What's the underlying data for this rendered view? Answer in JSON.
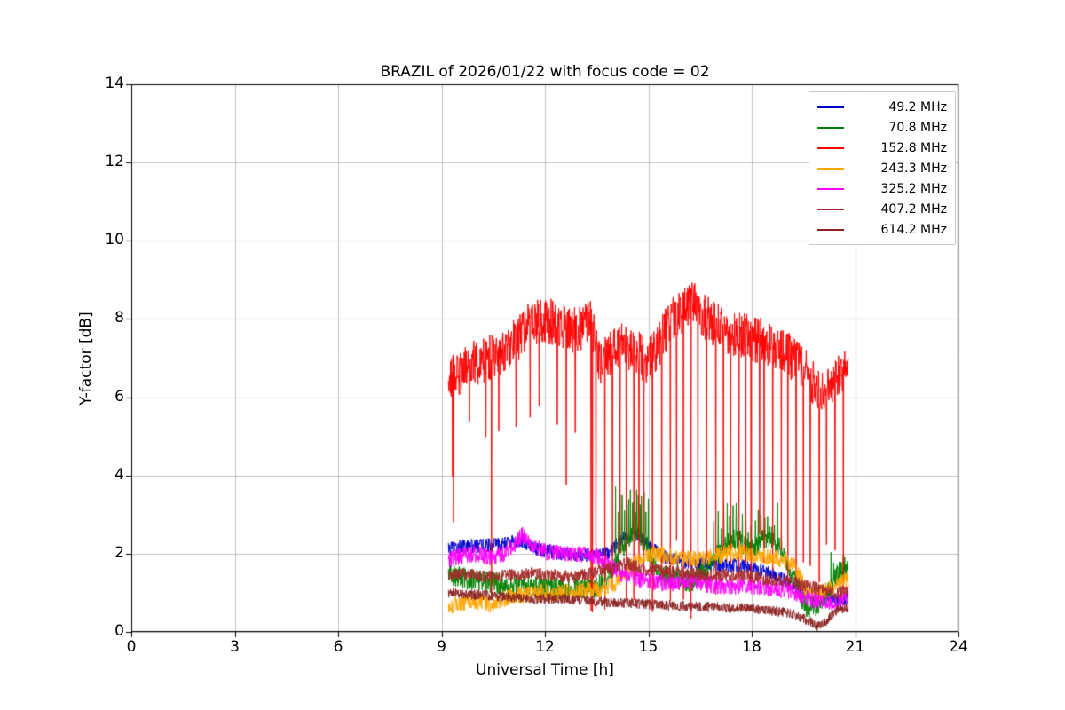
{
  "chart_data": {
    "type": "line",
    "title": "BRAZIL of 2026/01/22 with focus code = 02",
    "xlabel": "Universal Time [h]",
    "ylabel": "Y-factor [dB]",
    "xlim": [
      0,
      24
    ],
    "ylim": [
      0,
      14
    ],
    "xticks": [
      0,
      3,
      6,
      9,
      12,
      15,
      18,
      21,
      24
    ],
    "yticks": [
      0,
      2,
      4,
      6,
      8,
      10,
      12,
      14
    ],
    "grid": true,
    "grid_color": "#b0b0b0",
    "legend_position": "upper right",
    "data_x_range": [
      9.2,
      20.8
    ],
    "series": [
      {
        "name": "49.2 MHz",
        "color": "#0000cd",
        "noise": 0.18,
        "keypoints": [
          [
            9.2,
            2.1
          ],
          [
            9.6,
            2.2
          ],
          [
            10.2,
            2.2
          ],
          [
            10.8,
            2.25
          ],
          [
            11.3,
            2.35
          ],
          [
            11.8,
            2.1
          ],
          [
            12.5,
            2.0
          ],
          [
            13.2,
            1.95
          ],
          [
            13.8,
            2.0
          ],
          [
            14.3,
            2.4
          ],
          [
            14.7,
            2.5
          ],
          [
            15.0,
            2.2
          ],
          [
            15.5,
            1.9
          ],
          [
            16.0,
            1.8
          ],
          [
            16.5,
            1.75
          ],
          [
            17.0,
            1.7
          ],
          [
            17.5,
            1.7
          ],
          [
            18.0,
            1.65
          ],
          [
            18.5,
            1.5
          ],
          [
            19.0,
            1.3
          ],
          [
            19.4,
            1.1
          ],
          [
            19.7,
            0.9
          ],
          [
            20.0,
            0.85
          ],
          [
            20.4,
            0.8
          ],
          [
            20.8,
            0.9
          ]
        ]
      },
      {
        "name": "70.8 MHz",
        "color": "#008000",
        "noise": 0.28,
        "keypoints": [
          [
            9.2,
            1.45
          ],
          [
            9.8,
            1.35
          ],
          [
            10.5,
            1.25
          ],
          [
            11.2,
            1.2
          ],
          [
            12.0,
            1.15
          ],
          [
            12.8,
            1.1
          ],
          [
            13.5,
            1.15
          ],
          [
            14.0,
            1.6
          ],
          [
            14.4,
            2.4
          ],
          [
            14.7,
            2.6
          ],
          [
            15.0,
            2.1
          ],
          [
            15.3,
            1.5
          ],
          [
            15.8,
            1.35
          ],
          [
            16.3,
            1.3
          ],
          [
            16.8,
            1.7
          ],
          [
            17.2,
            2.2
          ],
          [
            17.6,
            2.4
          ],
          [
            18.0,
            2.1
          ],
          [
            18.4,
            2.4
          ],
          [
            18.7,
            2.3
          ],
          [
            19.0,
            1.8
          ],
          [
            19.3,
            1.2
          ],
          [
            19.6,
            0.6
          ],
          [
            19.9,
            0.7
          ],
          [
            20.2,
            1.0
          ],
          [
            20.5,
            1.5
          ],
          [
            20.8,
            1.7
          ]
        ],
        "up_spike_regions": [
          {
            "x0": 14.05,
            "x1": 15.05,
            "top": [
              3.0,
              3.8
            ],
            "interval": 0.06
          },
          {
            "x0": 16.9,
            "x1": 18.9,
            "top": [
              2.5,
              3.3
            ],
            "interval": 0.1
          },
          {
            "x0": 20.3,
            "x1": 20.78,
            "top": [
              1.7,
              2.1
            ],
            "interval": 0.08
          }
        ]
      },
      {
        "name": "152.8 MHz",
        "color": "#ff0000",
        "noise": 0.6,
        "keypoints": [
          [
            9.2,
            6.3
          ],
          [
            9.4,
            6.6
          ],
          [
            9.7,
            6.7
          ],
          [
            10.0,
            6.9
          ],
          [
            10.4,
            7.0
          ],
          [
            10.8,
            7.1
          ],
          [
            11.2,
            7.5
          ],
          [
            11.6,
            7.9
          ],
          [
            12.0,
            7.95
          ],
          [
            12.4,
            7.9
          ],
          [
            12.8,
            7.7
          ],
          [
            13.1,
            7.8
          ],
          [
            13.35,
            7.9
          ],
          [
            13.6,
            6.9
          ],
          [
            13.9,
            7.1
          ],
          [
            14.2,
            7.3
          ],
          [
            14.6,
            7.2
          ],
          [
            15.0,
            6.9
          ],
          [
            15.3,
            7.3
          ],
          [
            15.6,
            7.9
          ],
          [
            15.9,
            8.1
          ],
          [
            16.2,
            8.5
          ],
          [
            16.5,
            8.2
          ],
          [
            16.8,
            7.9
          ],
          [
            17.2,
            7.7
          ],
          [
            17.6,
            7.6
          ],
          [
            18.0,
            7.5
          ],
          [
            18.4,
            7.4
          ],
          [
            18.8,
            7.2
          ],
          [
            19.2,
            7.0
          ],
          [
            19.6,
            6.6
          ],
          [
            20.0,
            6.2
          ],
          [
            20.3,
            6.2
          ],
          [
            20.55,
            6.6
          ],
          [
            20.8,
            7.0
          ]
        ],
        "down_spikes": {
          "transition_x": 13.3,
          "early": {
            "interval": 0.4,
            "depth": [
              3.6,
              5.8
            ]
          },
          "late": {
            "interval": 0.2,
            "depth": [
              0.3,
              2.6
            ]
          },
          "extra": [
            [
              9.35,
              2.8
            ],
            [
              10.45,
              0.9
            ],
            [
              13.38,
              0.5
            ]
          ]
        }
      },
      {
        "name": "243.3 MHz",
        "color": "#ffa500",
        "noise": 0.22,
        "keypoints": [
          [
            9.2,
            0.65
          ],
          [
            9.6,
            0.75
          ],
          [
            10.0,
            0.8
          ],
          [
            10.4,
            0.7
          ],
          [
            10.8,
            0.85
          ],
          [
            11.2,
            0.95
          ],
          [
            11.8,
            1.0
          ],
          [
            12.4,
            1.0
          ],
          [
            13.0,
            1.05
          ],
          [
            13.6,
            1.1
          ],
          [
            14.0,
            1.2
          ],
          [
            14.4,
            1.6
          ],
          [
            14.8,
            1.9
          ],
          [
            15.2,
            2.0
          ],
          [
            15.8,
            1.9
          ],
          [
            16.4,
            1.85
          ],
          [
            17.0,
            1.95
          ],
          [
            17.5,
            2.05
          ],
          [
            18.0,
            2.0
          ],
          [
            18.5,
            1.9
          ],
          [
            19.0,
            1.85
          ],
          [
            19.3,
            1.6
          ],
          [
            19.6,
            1.0
          ],
          [
            19.9,
            0.95
          ],
          [
            20.2,
            1.1
          ],
          [
            20.5,
            1.25
          ],
          [
            20.8,
            1.3
          ]
        ]
      },
      {
        "name": "325.2 MHz",
        "color": "#ff00ff",
        "noise": 0.22,
        "keypoints": [
          [
            9.2,
            1.85
          ],
          [
            9.6,
            1.95
          ],
          [
            10.0,
            2.0
          ],
          [
            10.4,
            1.9
          ],
          [
            10.8,
            2.0
          ],
          [
            11.1,
            2.2
          ],
          [
            11.35,
            2.5
          ],
          [
            11.6,
            2.2
          ],
          [
            12.0,
            2.05
          ],
          [
            12.5,
            2.0
          ],
          [
            13.0,
            2.0
          ],
          [
            13.5,
            1.95
          ],
          [
            13.9,
            1.7
          ],
          [
            14.3,
            1.45
          ],
          [
            14.8,
            1.35
          ],
          [
            15.3,
            1.25
          ],
          [
            15.8,
            1.25
          ],
          [
            16.3,
            1.3
          ],
          [
            16.8,
            1.2
          ],
          [
            17.3,
            1.15
          ],
          [
            17.8,
            1.2
          ],
          [
            18.3,
            1.15
          ],
          [
            18.8,
            1.1
          ],
          [
            19.2,
            1.05
          ],
          [
            19.6,
            0.85
          ],
          [
            20.0,
            0.8
          ],
          [
            20.4,
            0.75
          ],
          [
            20.8,
            0.85
          ]
        ]
      },
      {
        "name": "407.2 MHz",
        "color": "#a52a2a",
        "noise": 0.16,
        "keypoints": [
          [
            9.2,
            1.5
          ],
          [
            9.8,
            1.45
          ],
          [
            10.4,
            1.4
          ],
          [
            11.0,
            1.45
          ],
          [
            11.6,
            1.5
          ],
          [
            12.2,
            1.45
          ],
          [
            12.8,
            1.4
          ],
          [
            13.4,
            1.5
          ],
          [
            13.9,
            1.65
          ],
          [
            14.4,
            1.75
          ],
          [
            14.9,
            1.6
          ],
          [
            15.4,
            1.55
          ],
          [
            16.0,
            1.5
          ],
          [
            16.6,
            1.45
          ],
          [
            17.2,
            1.45
          ],
          [
            17.8,
            1.45
          ],
          [
            18.4,
            1.35
          ],
          [
            19.0,
            1.3
          ],
          [
            19.5,
            1.2
          ],
          [
            20.0,
            1.1
          ],
          [
            20.4,
            1.0
          ],
          [
            20.8,
            1.05
          ]
        ]
      },
      {
        "name": "614.2 MHz",
        "color": "#8b2323",
        "noise": 0.13,
        "keypoints": [
          [
            9.2,
            1.0
          ],
          [
            10.0,
            0.95
          ],
          [
            10.8,
            0.9
          ],
          [
            11.6,
            0.85
          ],
          [
            12.4,
            0.85
          ],
          [
            13.2,
            0.8
          ],
          [
            14.0,
            0.75
          ],
          [
            14.8,
            0.72
          ],
          [
            15.6,
            0.68
          ],
          [
            16.4,
            0.65
          ],
          [
            17.2,
            0.62
          ],
          [
            18.0,
            0.6
          ],
          [
            18.6,
            0.55
          ],
          [
            19.2,
            0.45
          ],
          [
            19.6,
            0.3
          ],
          [
            19.9,
            0.15
          ],
          [
            20.2,
            0.3
          ],
          [
            20.5,
            0.55
          ],
          [
            20.8,
            0.6
          ]
        ]
      }
    ]
  }
}
